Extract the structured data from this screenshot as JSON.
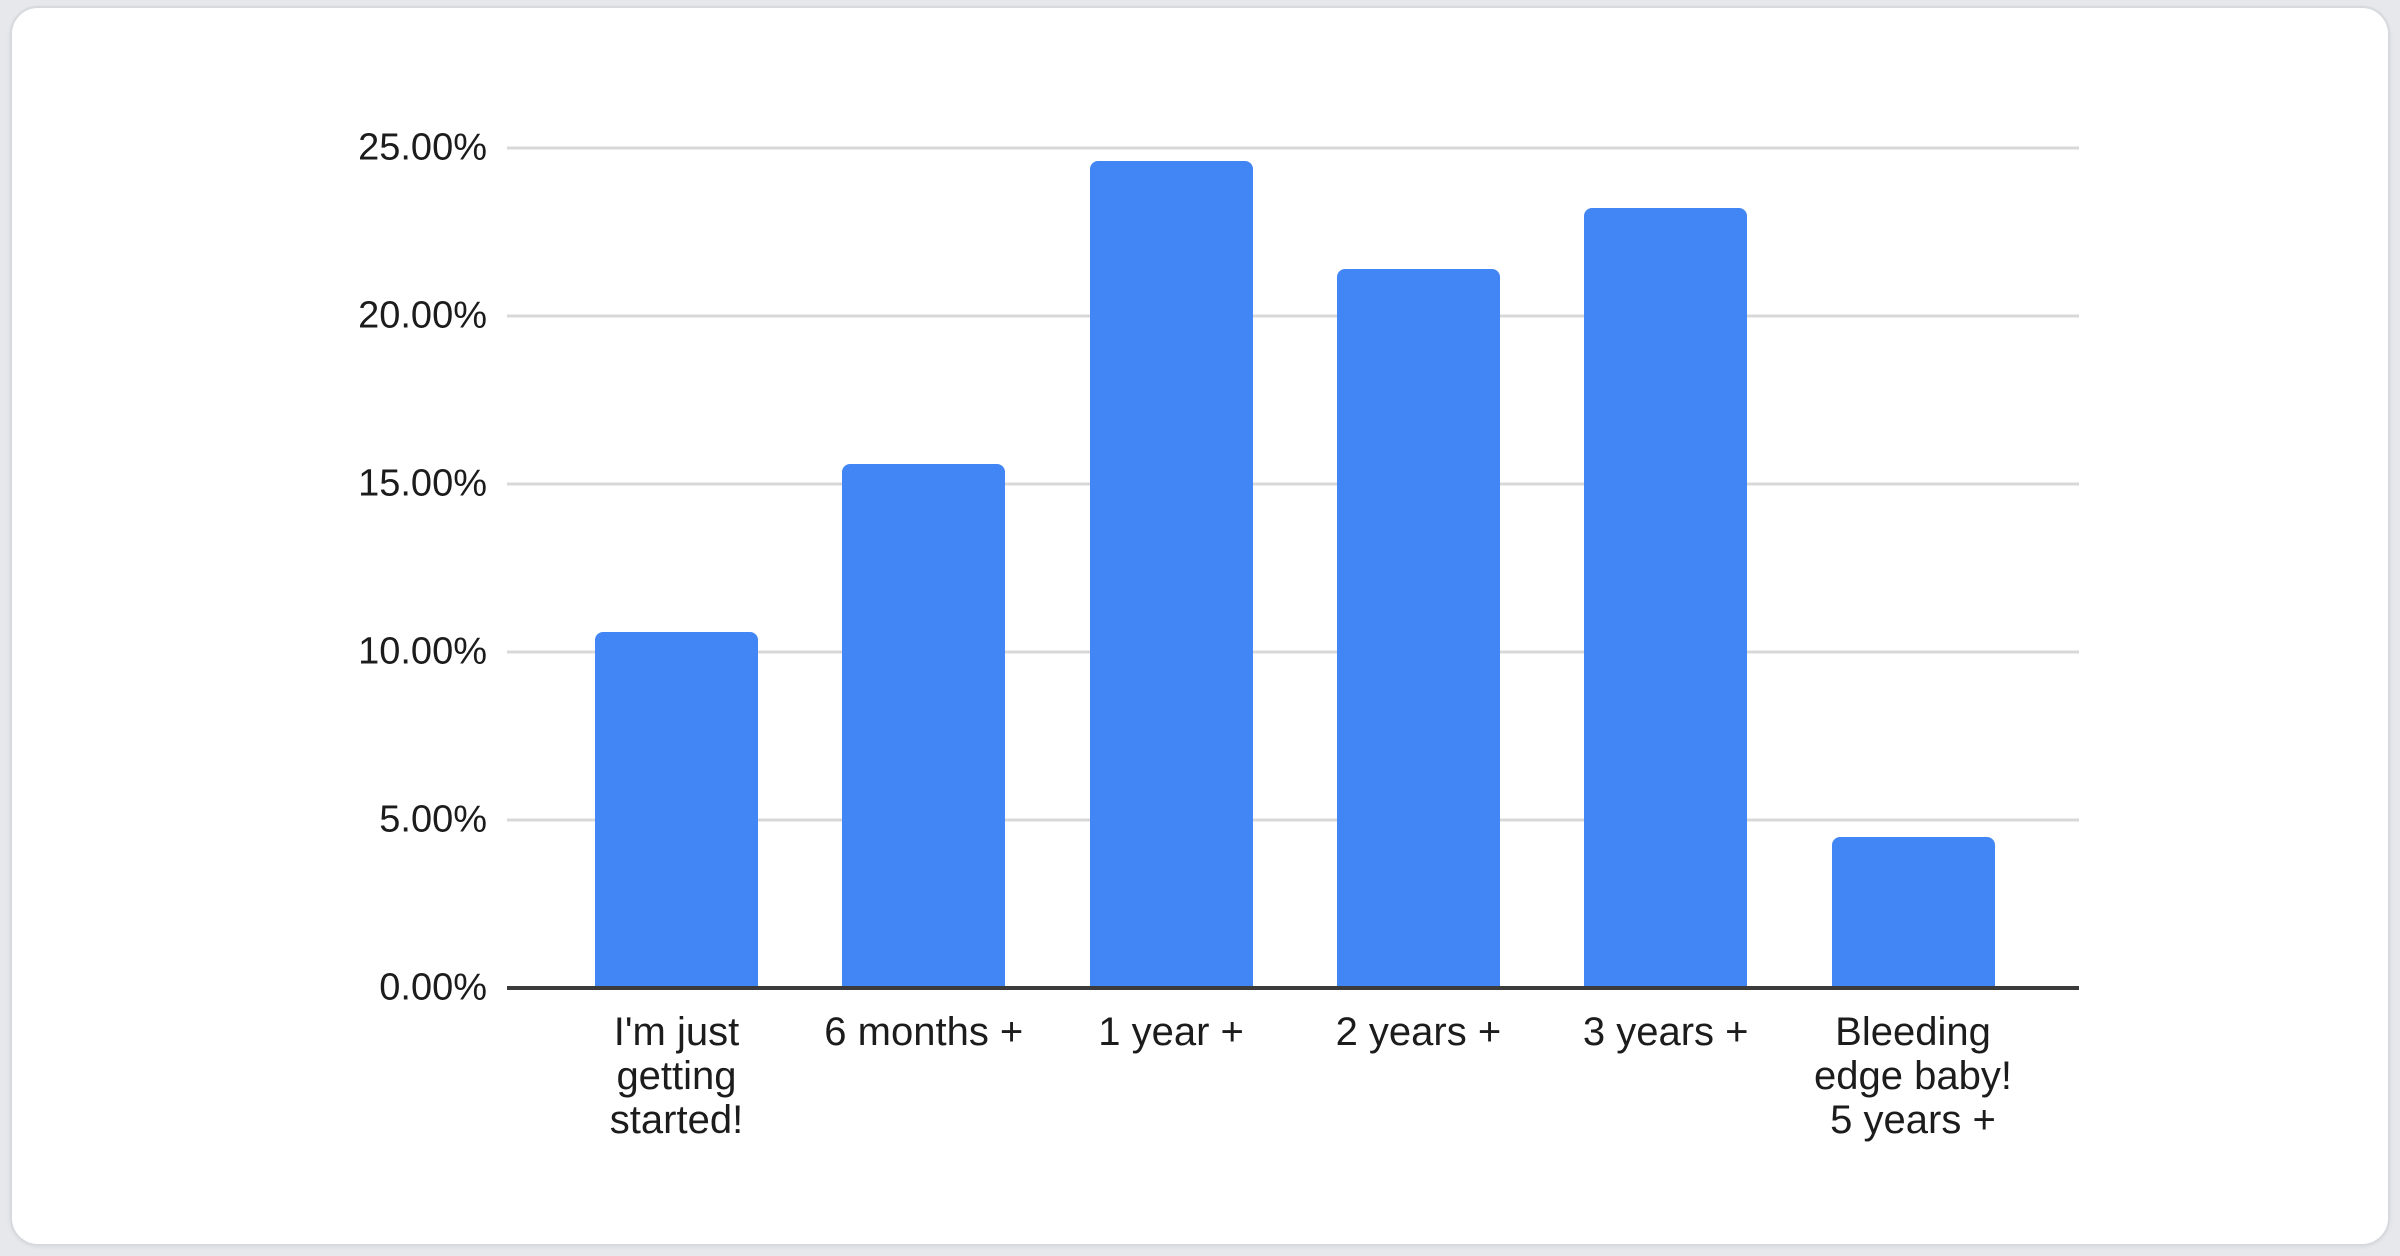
{
  "page": {
    "background_color": "#e6e8eb",
    "card_background_color": "#ffffff"
  },
  "chart_data": {
    "type": "bar",
    "title": "",
    "xlabel": "",
    "ylabel": "",
    "categories": [
      "I'm just getting started!",
      "6 months +",
      "1 year +",
      "2 years +",
      "3 years +",
      "Bleeding edge baby! 5 years +"
    ],
    "values": [
      10.6,
      15.6,
      24.6,
      21.4,
      23.2,
      4.5
    ],
    "value_unit": "%",
    "ylim": [
      0,
      25
    ],
    "y_ticks": [
      "25.00%",
      "20.00%",
      "15.00%",
      "10.00%",
      "5.00%",
      "0.00%"
    ],
    "grid": true,
    "legend": false,
    "bar_color": "#4285f4",
    "gridline_color": "#d8d8db",
    "axis_line_color": "#3b3b3b",
    "text_color": "#1c1c1c"
  }
}
